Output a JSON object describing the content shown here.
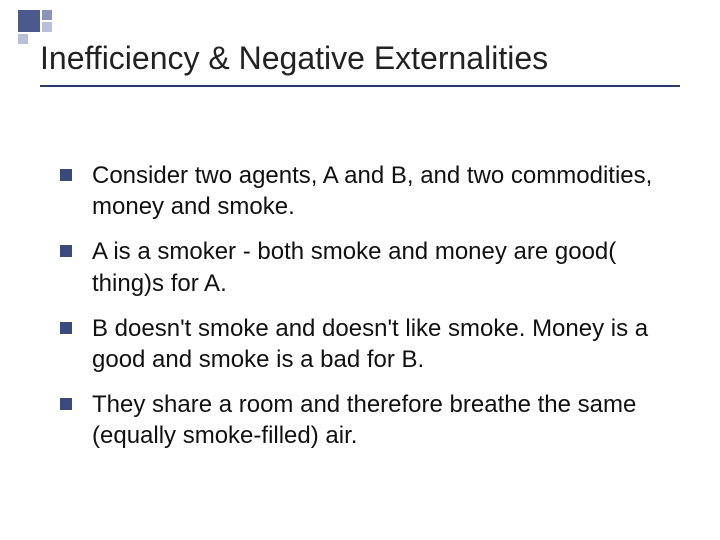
{
  "slide": {
    "title": "Inefficiency & Negative Externalities",
    "bullets": [
      "Consider two agents, A and B, and two commodities, money and smoke.",
      "A is a smoker - both smoke and money are good( thing)s for A.",
      "B doesn't smoke and doesn't like smoke. Money is a good and smoke is a bad for B.",
      "They share a room and therefore breathe the same (equally smoke-filled) air."
    ]
  },
  "style": {
    "title_fontsize": 32,
    "title_color": "#222222",
    "body_fontsize": 24,
    "body_color": "#111111",
    "bullet_color": "#3a4a7a",
    "accent_colors": [
      "#4a5a8a",
      "#8a95b8",
      "#b8c0d8"
    ],
    "underline_color": "#2a3a6a",
    "background": "#ffffff"
  }
}
